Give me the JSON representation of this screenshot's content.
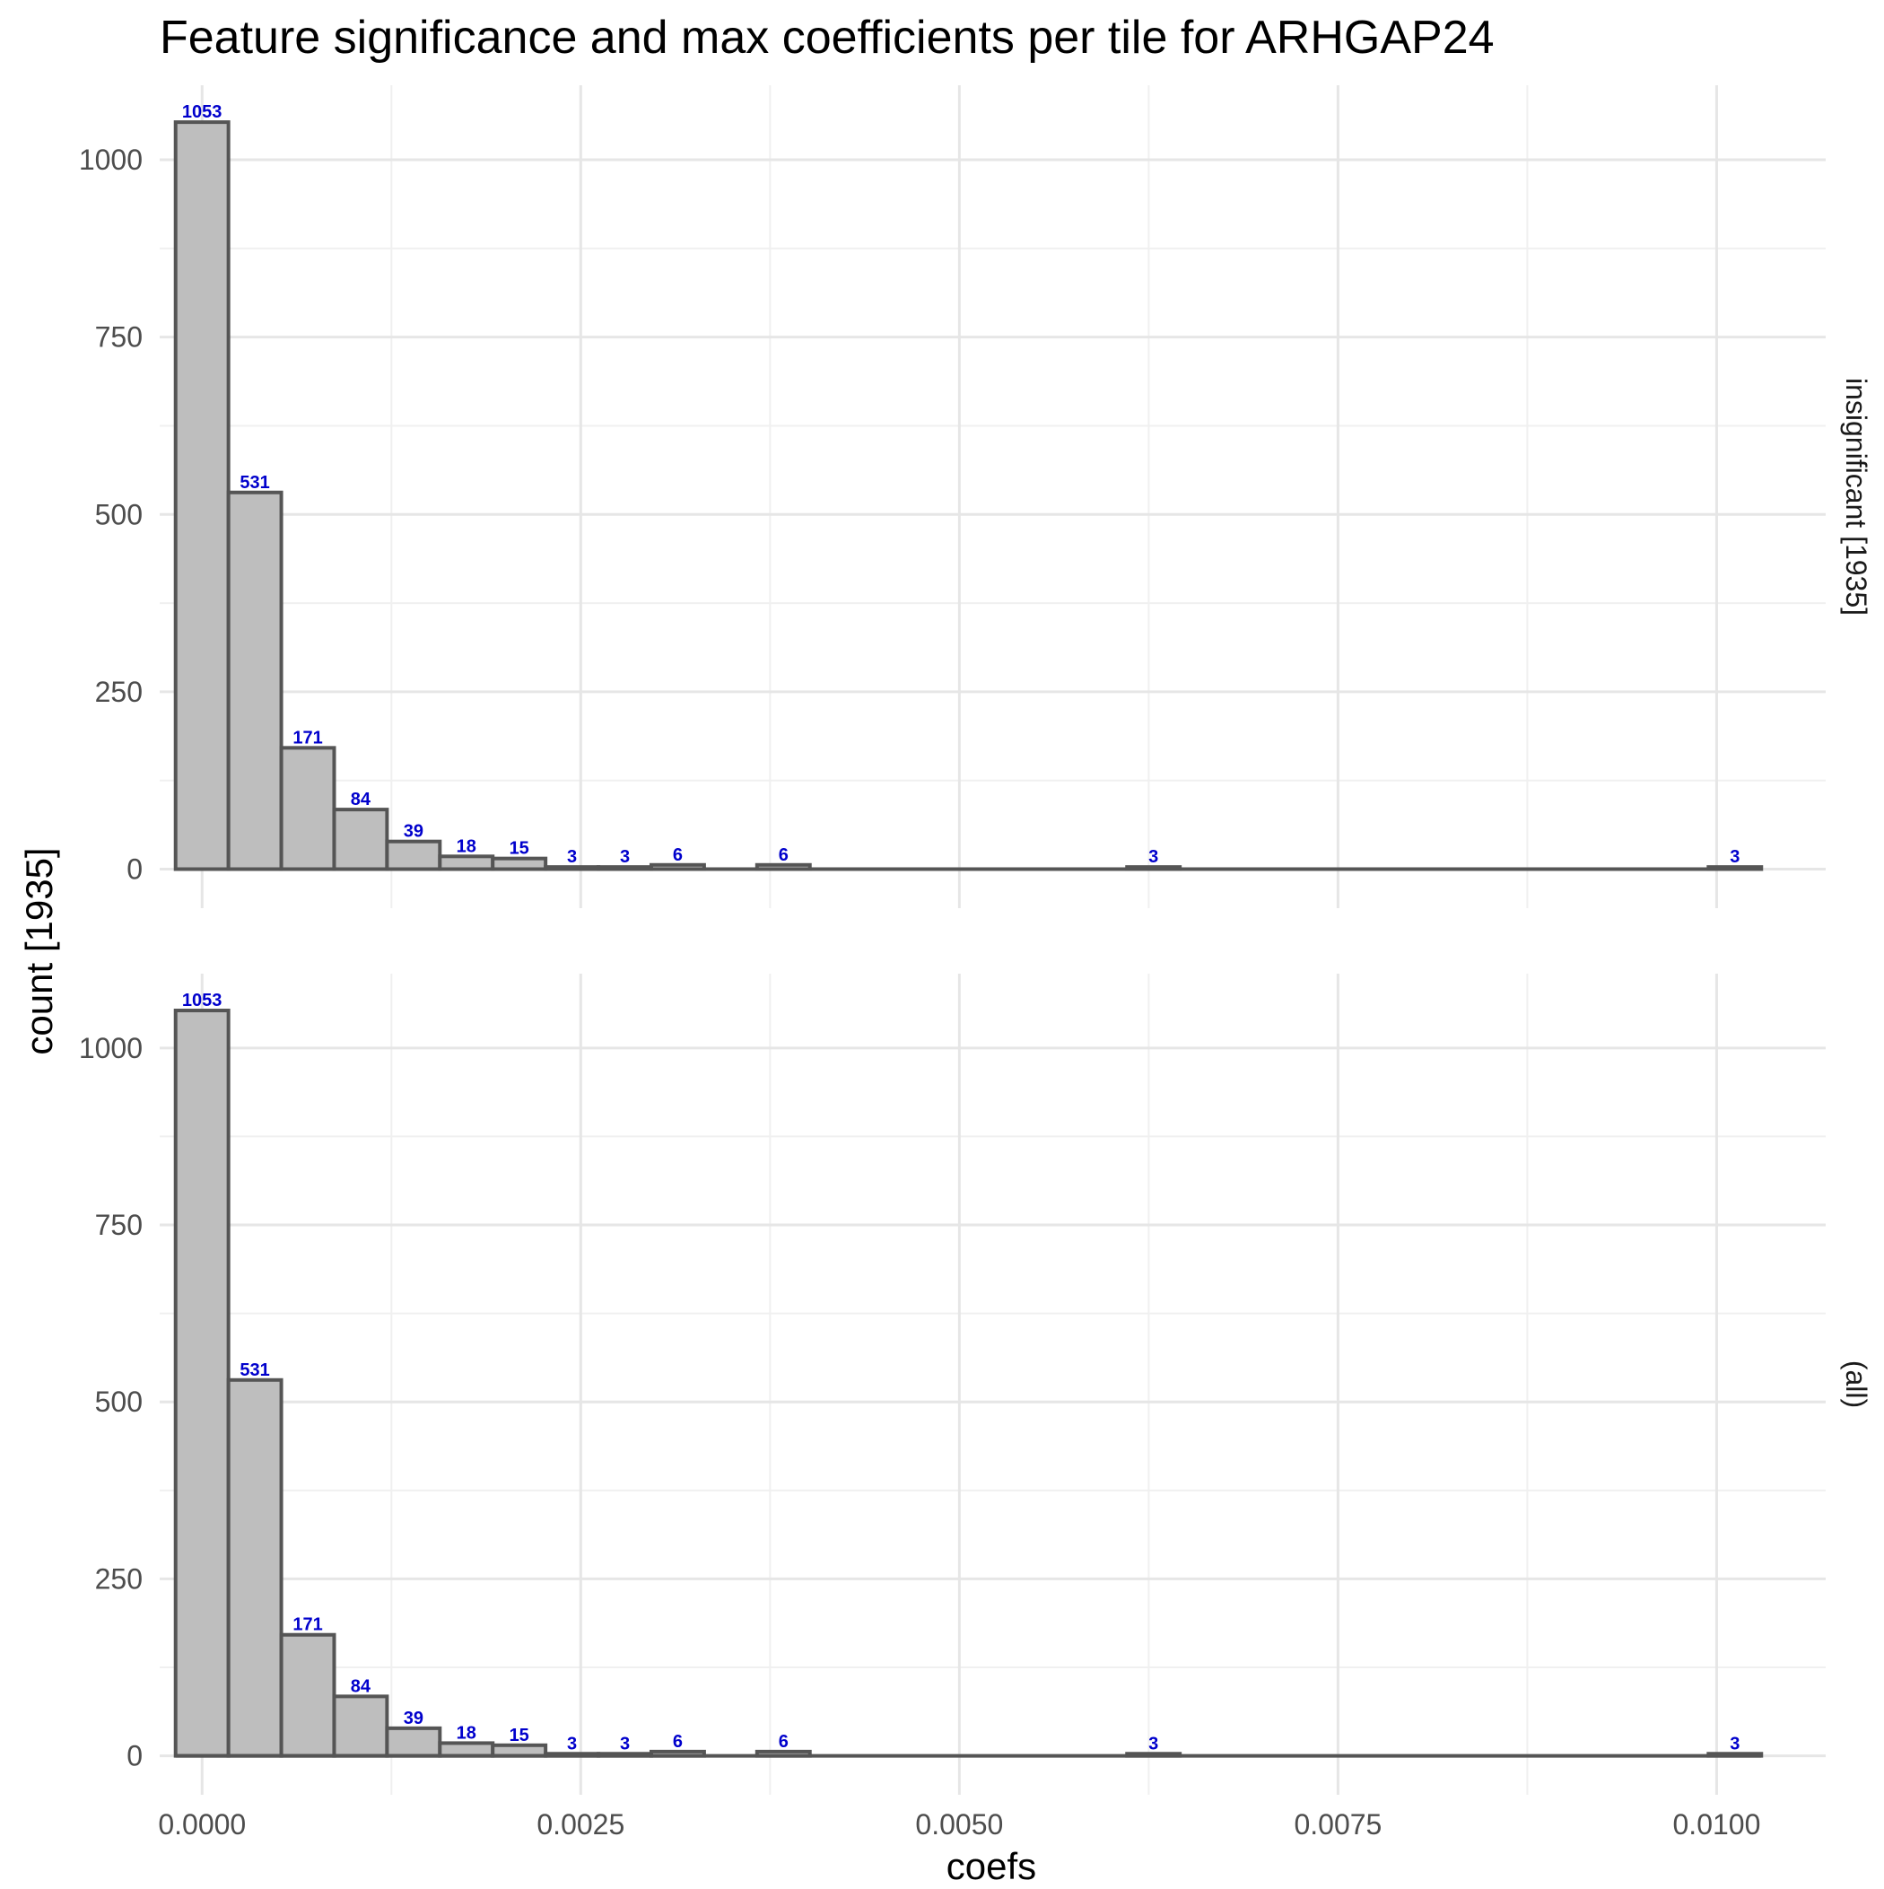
{
  "chart_data": {
    "type": "bar",
    "title": "Feature significance and max coefficients per tile for ARHGAP24",
    "xlabel": "coefs",
    "ylabel": "count [1935]",
    "xlim": [
      -0.00028,
      0.01072
    ],
    "ylim": [
      -55,
      1105
    ],
    "x_ticks": [
      {
        "value": 0.0,
        "label": "0.0000"
      },
      {
        "value": 0.0025,
        "label": "0.0025"
      },
      {
        "value": 0.005,
        "label": "0.0050"
      },
      {
        "value": 0.0075,
        "label": "0.0075"
      },
      {
        "value": 0.01,
        "label": "0.0100"
      }
    ],
    "y_ticks": [
      {
        "value": 0,
        "label": "0"
      },
      {
        "value": 250,
        "label": "250"
      },
      {
        "value": 500,
        "label": "500"
      },
      {
        "value": 750,
        "label": "750"
      },
      {
        "value": 1000,
        "label": "1000"
      }
    ],
    "x_minor_breaks": [
      0.00125,
      0.00375,
      0.00625,
      0.00875
    ],
    "y_minor_breaks": [
      125,
      375,
      625,
      875
    ],
    "bin_width": 0.000349,
    "grid": true,
    "panels": [
      {
        "strip_label": "insignificant [1935]",
        "bins": [
          {
            "x0": -0.000175,
            "x1": 0.000174,
            "count": 1053,
            "label": "1053"
          },
          {
            "x0": 0.000174,
            "x1": 0.000523,
            "count": 531,
            "label": "531"
          },
          {
            "x0": 0.000523,
            "x1": 0.000872,
            "count": 171,
            "label": "171"
          },
          {
            "x0": 0.000872,
            "x1": 0.001221,
            "count": 84,
            "label": "84"
          },
          {
            "x0": 0.001221,
            "x1": 0.00157,
            "count": 39,
            "label": "39"
          },
          {
            "x0": 0.00157,
            "x1": 0.001919,
            "count": 18,
            "label": "18"
          },
          {
            "x0": 0.001919,
            "x1": 0.002268,
            "count": 15,
            "label": "15"
          },
          {
            "x0": 0.002268,
            "x1": 0.002617,
            "count": 3,
            "label": "3"
          },
          {
            "x0": 0.002617,
            "x1": 0.002966,
            "count": 3,
            "label": "3"
          },
          {
            "x0": 0.002966,
            "x1": 0.003315,
            "count": 6,
            "label": "6"
          },
          {
            "x0": 0.003664,
            "x1": 0.004013,
            "count": 6,
            "label": "6"
          },
          {
            "x0": 0.006107,
            "x1": 0.006456,
            "count": 3,
            "label": "3"
          },
          {
            "x0": 0.009946,
            "x1": 0.010295,
            "count": 3,
            "label": "3"
          }
        ]
      },
      {
        "strip_label": "(all)",
        "bins": [
          {
            "x0": -0.000175,
            "x1": 0.000174,
            "count": 1053,
            "label": "1053"
          },
          {
            "x0": 0.000174,
            "x1": 0.000523,
            "count": 531,
            "label": "531"
          },
          {
            "x0": 0.000523,
            "x1": 0.000872,
            "count": 171,
            "label": "171"
          },
          {
            "x0": 0.000872,
            "x1": 0.001221,
            "count": 84,
            "label": "84"
          },
          {
            "x0": 0.001221,
            "x1": 0.00157,
            "count": 39,
            "label": "39"
          },
          {
            "x0": 0.00157,
            "x1": 0.001919,
            "count": 18,
            "label": "18"
          },
          {
            "x0": 0.001919,
            "x1": 0.002268,
            "count": 15,
            "label": "15"
          },
          {
            "x0": 0.002268,
            "x1": 0.002617,
            "count": 3,
            "label": "3"
          },
          {
            "x0": 0.002617,
            "x1": 0.002966,
            "count": 3,
            "label": "3"
          },
          {
            "x0": 0.002966,
            "x1": 0.003315,
            "count": 6,
            "label": "6"
          },
          {
            "x0": 0.003664,
            "x1": 0.004013,
            "count": 6,
            "label": "6"
          },
          {
            "x0": 0.006107,
            "x1": 0.006456,
            "count": 3,
            "label": "3"
          },
          {
            "x0": 0.009946,
            "x1": 0.010295,
            "count": 3,
            "label": "3"
          }
        ]
      }
    ],
    "colors": {
      "bar_fill": "#bebebe",
      "bar_stroke": "#555555",
      "count_label": "#0000cc",
      "grid_major": "#e6e6e6",
      "grid_minor": "#f0f0f0",
      "tick_label": "#4d4d4d",
      "axis_title": "#000000"
    }
  }
}
